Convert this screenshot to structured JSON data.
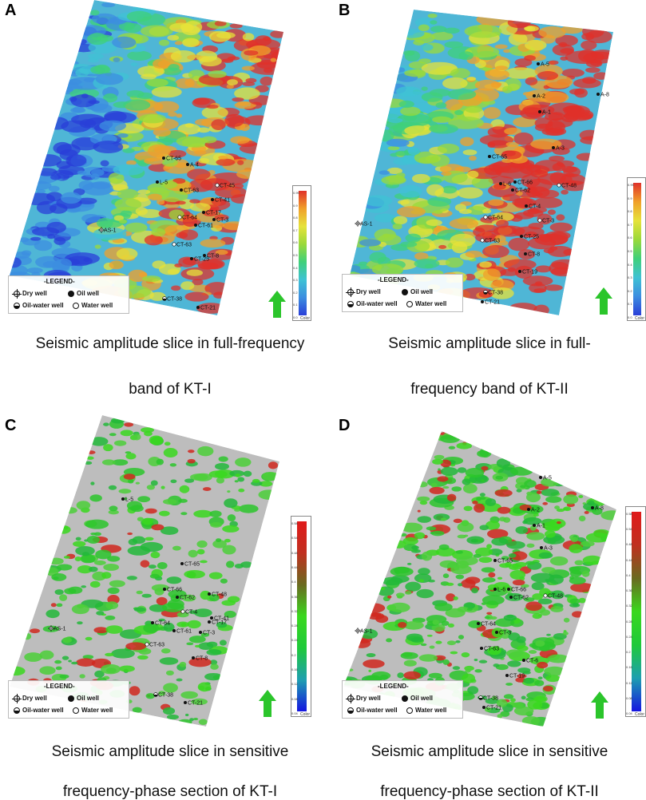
{
  "panels": [
    {
      "label": "A",
      "caption_lines": [
        "Seismic amplitude slice in full-frequency",
        "band of KT-I"
      ],
      "style": "full",
      "wells": [
        {
          "name": "CT-65",
          "type": "oil"
        },
        {
          "name": "A-4",
          "type": "oil"
        },
        {
          "name": "L-5",
          "type": "oil"
        },
        {
          "name": "CT-63",
          "type": "oil"
        },
        {
          "name": "CT-45",
          "type": "water"
        },
        {
          "name": "CT-41",
          "type": "oil"
        },
        {
          "name": "CT-17",
          "type": "oil"
        },
        {
          "name": "CT-64",
          "type": "water"
        },
        {
          "name": "CT-61",
          "type": "oil"
        },
        {
          "name": "CT-3",
          "type": "oil"
        },
        {
          "name": "AS-1",
          "type": "dry"
        },
        {
          "name": "CT-63",
          "type": "water"
        },
        {
          "name": "CT-25",
          "type": "oil"
        },
        {
          "name": "CT-8",
          "type": "oil"
        },
        {
          "name": "CT-38",
          "type": "oil-water"
        },
        {
          "name": "CT-21",
          "type": "oil"
        }
      ]
    },
    {
      "label": "B",
      "caption_lines": [
        "Seismic amplitude slice in full-",
        "frequency band of KT-II"
      ],
      "style": "full",
      "wells": [
        {
          "name": "A-5",
          "type": "oil"
        },
        {
          "name": "A-2",
          "type": "oil"
        },
        {
          "name": "A-8",
          "type": "oil"
        },
        {
          "name": "A-1",
          "type": "oil"
        },
        {
          "name": "A-3",
          "type": "oil"
        },
        {
          "name": "CT-65",
          "type": "oil"
        },
        {
          "name": "L-6",
          "type": "oil"
        },
        {
          "name": "CT-66",
          "type": "oil"
        },
        {
          "name": "CT-62",
          "type": "oil"
        },
        {
          "name": "CT-48",
          "type": "water"
        },
        {
          "name": "CT-4",
          "type": "oil"
        },
        {
          "name": "CT-64",
          "type": "water"
        },
        {
          "name": "CT-3",
          "type": "water"
        },
        {
          "name": "AS-1",
          "type": "dry"
        },
        {
          "name": "CT-63",
          "type": "water"
        },
        {
          "name": "CT-25",
          "type": "oil"
        },
        {
          "name": "CT-8",
          "type": "oil"
        },
        {
          "name": "CT-19",
          "type": "oil"
        },
        {
          "name": "CT-38",
          "type": "oil-water"
        },
        {
          "name": "CT-21",
          "type": "oil"
        }
      ]
    },
    {
      "label": "C",
      "caption_lines": [
        "Seismic amplitude slice in sensitive",
        "frequency-phase section of KT-I"
      ],
      "style": "sensitive",
      "wells": [
        {
          "name": "L-5",
          "type": "oil"
        },
        {
          "name": "CT-65",
          "type": "oil"
        },
        {
          "name": "CT-66",
          "type": "oil"
        },
        {
          "name": "CT-62",
          "type": "oil"
        },
        {
          "name": "CT-48",
          "type": "oil"
        },
        {
          "name": "CT-4",
          "type": "water"
        },
        {
          "name": "CT-41",
          "type": "oil"
        },
        {
          "name": "CT-17",
          "type": "oil"
        },
        {
          "name": "CT-64",
          "type": "oil"
        },
        {
          "name": "CT-61",
          "type": "oil"
        },
        {
          "name": "CT-3",
          "type": "oil"
        },
        {
          "name": "AS-1",
          "type": "dry"
        },
        {
          "name": "CT-63",
          "type": "water"
        },
        {
          "name": "CT-8",
          "type": "oil"
        },
        {
          "name": "CT-38",
          "type": "oil-water"
        },
        {
          "name": "CT-21",
          "type": "oil"
        }
      ]
    },
    {
      "label": "D",
      "caption_lines": [
        "Seismic amplitude slice in sensitive",
        "frequency-phase section of KT-II"
      ],
      "style": "sensitive",
      "wells": [
        {
          "name": "A-5",
          "type": "oil"
        },
        {
          "name": "A-2",
          "type": "oil"
        },
        {
          "name": "A-8",
          "type": "oil"
        },
        {
          "name": "A-1",
          "type": "oil"
        },
        {
          "name": "A-3",
          "type": "oil"
        },
        {
          "name": "CT-65",
          "type": "oil"
        },
        {
          "name": "L-6",
          "type": "oil"
        },
        {
          "name": "CT-66",
          "type": "oil"
        },
        {
          "name": "CT-62",
          "type": "oil"
        },
        {
          "name": "CT-48",
          "type": "water"
        },
        {
          "name": "CT-64",
          "type": "oil"
        },
        {
          "name": "CT-3",
          "type": "oil"
        },
        {
          "name": "AS-1",
          "type": "dry"
        },
        {
          "name": "CT-63",
          "type": "oil"
        },
        {
          "name": "CT-6",
          "type": "oil"
        },
        {
          "name": "CT-19",
          "type": "oil"
        },
        {
          "name": "CT-38",
          "type": "oil-water"
        },
        {
          "name": "CT-21",
          "type": "oil"
        }
      ]
    }
  ],
  "legend": {
    "title": "-LEGEND-",
    "dry_well": "Dry well",
    "oil_well": "Oil well",
    "oil_water_well": "Oil-water well",
    "water_well": "Water well"
  },
  "colorbar": {
    "title": "Color",
    "full_ticks": [
      "0.99",
      "0.9",
      "0.8",
      "0.7",
      "0.6",
      "0.5",
      "0.4",
      "0.3",
      "0.2",
      "0.1",
      "0.0"
    ],
    "sensitive_ticks": [
      "0.58",
      "0.54",
      "0.48",
      "0.44",
      "0.4",
      "0.36",
      "0.32",
      "0.28",
      "0.24",
      "0.2",
      "0.16",
      "0.12",
      "0.08",
      "0.04"
    ]
  },
  "colors": {
    "full_ramp": [
      "#2a3fd8",
      "#3c8de0",
      "#3fc2d4",
      "#3fd07a",
      "#9ad93a",
      "#e6e23a",
      "#f0a02a",
      "#e0302a"
    ],
    "sensitive_ramp": [
      "#1515e0",
      "#1e9fb0",
      "#1ec93a",
      "#3ad81e",
      "#6a6a20",
      "#c03020",
      "#e01a1a"
    ],
    "sensitive_bg": "#bdbdbd",
    "north_arrow": "#2bc52b"
  }
}
